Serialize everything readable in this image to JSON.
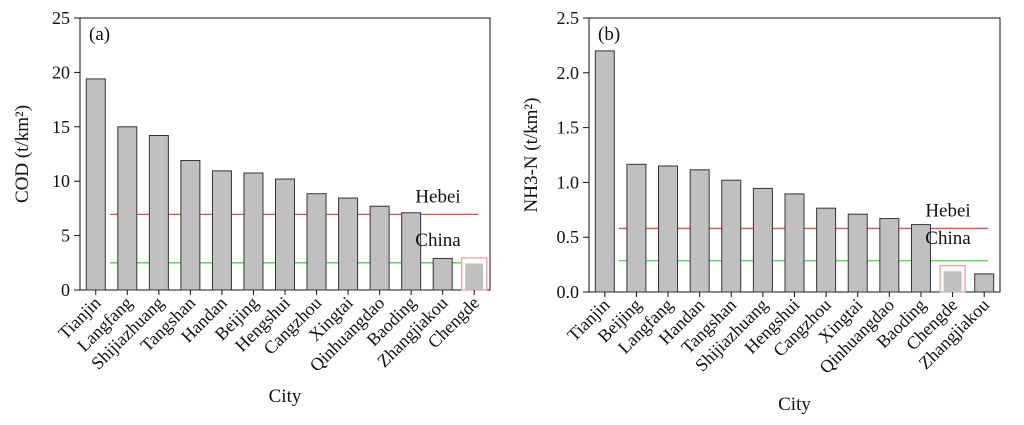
{
  "chart_data": [
    {
      "type": "bar",
      "panel_label": "(a)",
      "categories": [
        "Tianjin",
        "Langfang",
        "Shijiazhuang",
        "Tangshan",
        "Handan",
        "Beijing",
        "Hengshui",
        "Cangzhou",
        "Xingtai",
        "Qinhuangdao",
        "Baoding",
        "Zhangjiakou",
        "Chengde"
      ],
      "values": [
        19.4,
        15.0,
        14.2,
        11.9,
        10.95,
        10.75,
        10.2,
        8.85,
        8.45,
        7.7,
        7.1,
        2.9,
        2.4
      ],
      "xlabel": "City",
      "ylabel": "COD (t/km²)",
      "ylim": [
        0,
        25
      ],
      "yticks": [
        0,
        5,
        10,
        15,
        20,
        25
      ],
      "highlight_category": "Chengde",
      "reference_lines": [
        {
          "name": "Hebei",
          "value": 6.95,
          "color": "#d9534f"
        },
        {
          "name": "China",
          "value": 2.5,
          "color": "#5cc85c"
        }
      ]
    },
    {
      "type": "bar",
      "panel_label": "(b)",
      "categories": [
        "Tianjin",
        "Beijing",
        "Langfang",
        "Handan",
        "Tangshan",
        "Shijiazhuang",
        "Hengshui",
        "Cangzhou",
        "Xingtai",
        "Qinhuangdao",
        "Baoding",
        "Chengde",
        "Zhangjiakou"
      ],
      "values": [
        2.2,
        1.165,
        1.15,
        1.115,
        1.02,
        0.945,
        0.895,
        0.765,
        0.71,
        0.67,
        0.615,
        0.185,
        0.165
      ],
      "xlabel": "City",
      "ylabel": "NH3-N (t/km²)",
      "ylim": [
        0,
        2.5
      ],
      "yticks": [
        "0.0",
        "0.5",
        "1.0",
        "1.5",
        "2.0",
        "2.5"
      ],
      "highlight_category": "Chengde",
      "reference_lines": [
        {
          "name": "Hebei",
          "value": 0.58,
          "color": "#d9534f"
        },
        {
          "name": "China",
          "value": 0.285,
          "color": "#5cc85c"
        }
      ]
    }
  ],
  "colors": {
    "bar_fill": "#c0c0c0",
    "bar_stroke": "#333333",
    "highlight_box": "#e8a0a0",
    "axis": "#111111"
  }
}
